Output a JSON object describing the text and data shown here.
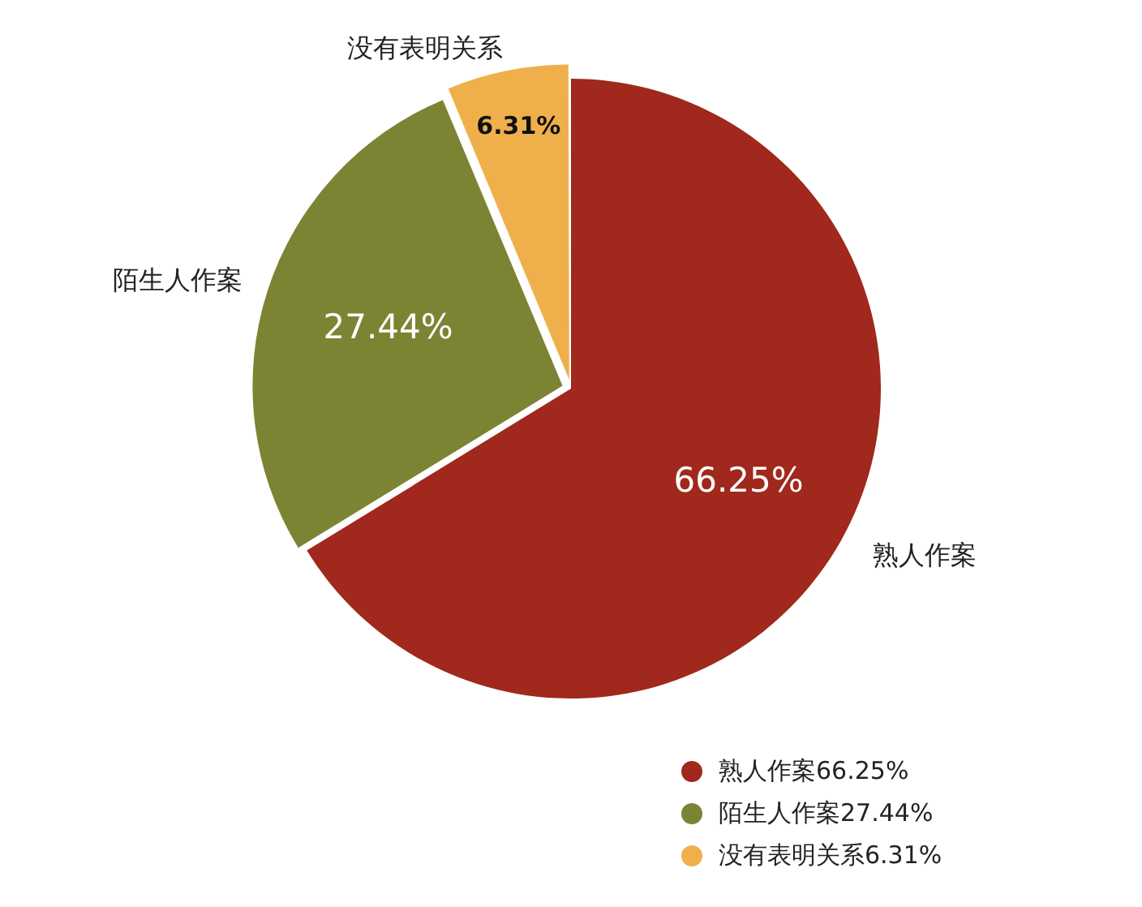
{
  "chart_data": {
    "type": "pie",
    "categories": [
      "熟人作案",
      "陌生人作案",
      "没有表明关系"
    ],
    "values": [
      66.25,
      27.44,
      6.31
    ],
    "colors": [
      "#a0281c",
      "#7c8434",
      "#efb04c"
    ],
    "value_labels": [
      "66.25%",
      "27.44%",
      "6.31%"
    ],
    "legend": "bottom right"
  }
}
